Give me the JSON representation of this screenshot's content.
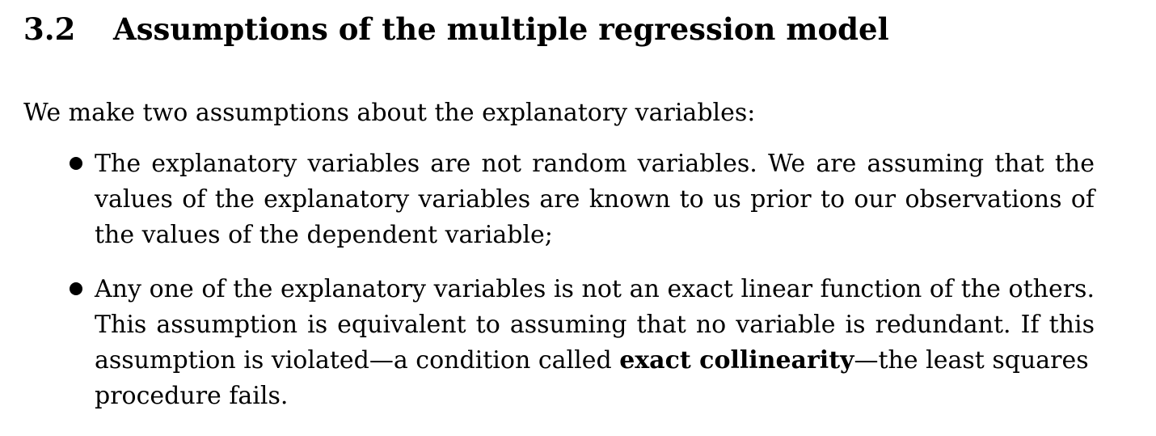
{
  "section": {
    "number": "3.2",
    "title": "Assumptions of the multiple regression model"
  },
  "intro": "We make two assumptions about the explanatory variables:",
  "bullets": [
    {
      "lines": [
        "The explanatory variables are not random variables. We are assuming that the",
        "values of the explanatory variables are known to us prior to our observations of",
        "the values of the dependent variable;"
      ]
    },
    {
      "lines": [
        "Any one of the explanatory variables is not an exact linear function of the others.",
        "This assumption is equivalent to assuming that no variable is redundant. If this",
        "assumption is violated—a condition called ",
        "exact collinearity",
        "—the least squares",
        "procedure fails."
      ]
    }
  ]
}
